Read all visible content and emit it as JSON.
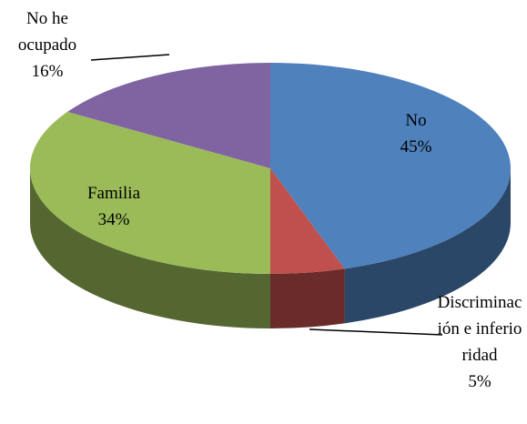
{
  "chart_data": {
    "type": "pie",
    "categories": [
      "No",
      "Discriminación e inferioridad",
      "Familia",
      "No he ocupado"
    ],
    "values": [
      45,
      5,
      34,
      16
    ],
    "value_labels": [
      "45%",
      "5%",
      "34%",
      "16%"
    ],
    "colors": [
      "#4f81bd",
      "#c0504d",
      "#9bbb59",
      "#8064a2"
    ]
  }
}
